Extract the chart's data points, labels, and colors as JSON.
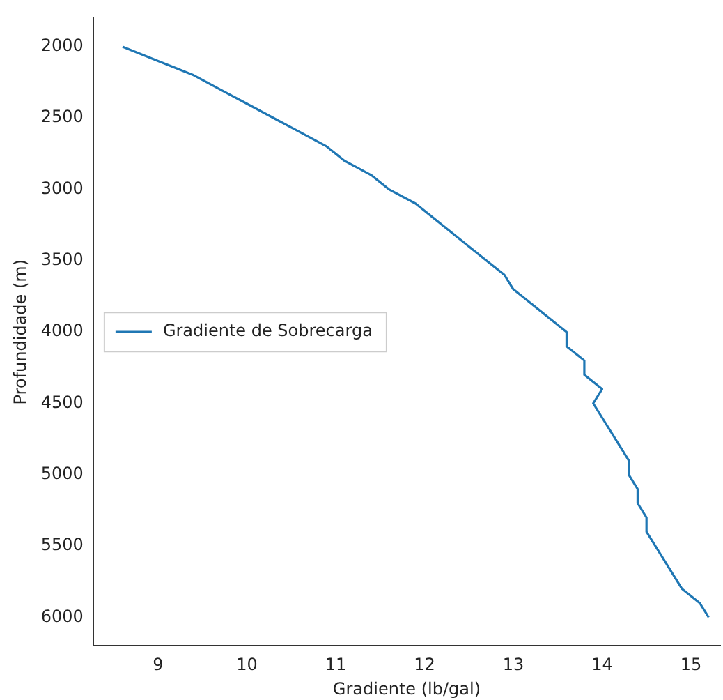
{
  "chart_data": {
    "type": "line",
    "xlabel": "Gradiente (lb/gal)",
    "ylabel": "Profundidade (m)",
    "xlim": [
      8.27,
      15.33
    ],
    "xticks": [
      9,
      10,
      11,
      12,
      13,
      14,
      15
    ],
    "ylim": [
      6200,
      1800
    ],
    "yticks": [
      2000,
      2500,
      3000,
      3500,
      4000,
      4500,
      5000,
      5500,
      6000
    ],
    "grid": false,
    "legend": "left",
    "marker": "none",
    "line_style": "solid",
    "series": [
      {
        "name": "Gradiente de Sobrecarga",
        "color": "#1f77b4",
        "x": [
          8.6,
          9.0,
          9.4,
          9.7,
          10.0,
          10.3,
          10.6,
          10.9,
          11.1,
          11.4,
          11.6,
          11.9,
          12.1,
          12.3,
          12.5,
          12.7,
          12.9,
          13.0,
          13.2,
          13.4,
          13.6,
          13.6,
          13.8,
          13.8,
          14.0,
          13.9,
          14.0,
          14.1,
          14.2,
          14.3,
          14.3,
          14.4,
          14.4,
          14.5,
          14.5,
          14.6,
          14.7,
          14.8,
          14.9,
          15.1,
          15.2
        ],
        "values": [
          2000,
          2100,
          2200,
          2300,
          2400,
          2500,
          2600,
          2700,
          2800,
          2900,
          3000,
          3100,
          3200,
          3300,
          3400,
          3500,
          3600,
          3700,
          3800,
          3900,
          4000,
          4100,
          4200,
          4300,
          4400,
          4500,
          4600,
          4700,
          4800,
          4900,
          5000,
          5100,
          5200,
          5300,
          5400,
          5500,
          5600,
          5700,
          5800,
          5900,
          6000
        ]
      }
    ]
  }
}
